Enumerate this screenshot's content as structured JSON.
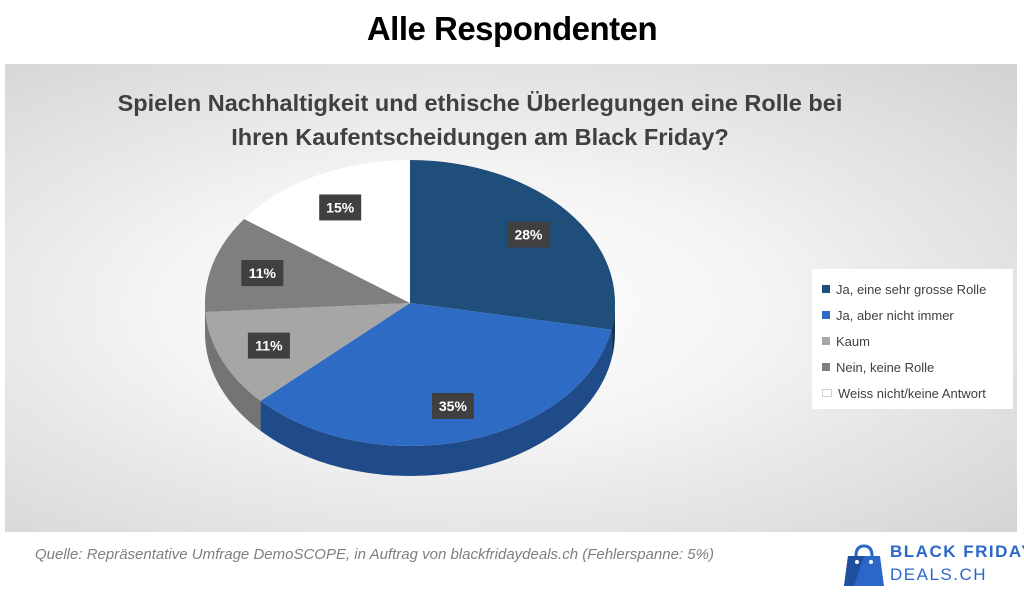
{
  "page": {
    "title": "Alle Respondenten",
    "source": "Quelle: Repräsentative Umfrage DemoSCOPE, in Auftrag von blackfridaydeals.ch (Fehlerspanne: 5%)",
    "logo": {
      "line1": "BLACK FRIDAY",
      "line2": "DEALS.CH",
      "icon": "shopping-bag-icon",
      "color": "#2b67c9"
    }
  },
  "chart_data": {
    "type": "pie",
    "title_lines": [
      "Spielen Nachhaltigkeit und ethische Überlegungen eine Rolle bei",
      "Ihren Kaufentscheidungen am Black Friday?"
    ],
    "categories": [
      "Ja, eine sehr grosse Rolle",
      "Ja, aber nicht immer",
      "Kaum",
      "Nein, keine Rolle",
      "Weiss nicht/keine Antwort"
    ],
    "values": [
      28,
      35,
      11,
      11,
      15
    ],
    "data_labels": [
      "28%",
      "35%",
      "11%",
      "11%",
      "15%"
    ],
    "unit": "%",
    "colors": [
      "#1f4e7a",
      "#2e6bc4",
      "#a6a6a6",
      "#7f7f7f",
      "#ffffff"
    ],
    "style": "3d-tilted",
    "legend_position": "right"
  }
}
